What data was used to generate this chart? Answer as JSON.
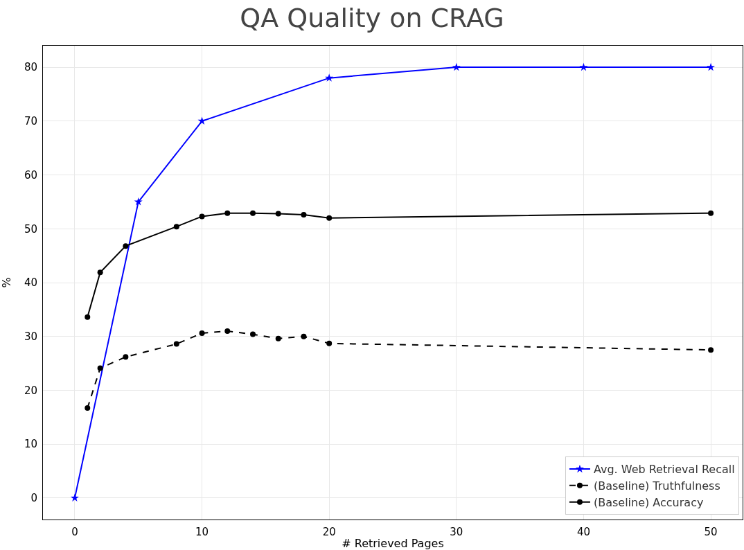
{
  "chart_data": {
    "type": "line",
    "title": "QA Quality on CRAG",
    "xlabel": "# Retrieved Pages",
    "ylabel": "%",
    "xlim": [
      -2.5,
      52.5
    ],
    "ylim": [
      -4,
      84
    ],
    "xticks": [
      0,
      10,
      20,
      30,
      40,
      50
    ],
    "yticks": [
      0,
      10,
      20,
      30,
      40,
      50,
      60,
      70,
      80
    ],
    "grid": true,
    "legend": "bottom right",
    "series": [
      {
        "name": "Avg. Web Retrieval Recall",
        "color": "#0000ff",
        "marker": "star",
        "line_style": "solid",
        "x": [
          0,
          5,
          10,
          20,
          30,
          40,
          50
        ],
        "values": [
          0,
          55,
          70,
          78,
          80,
          80,
          80
        ]
      },
      {
        "name": "(Baseline) Truthfulness",
        "color": "#000000",
        "marker": "circle",
        "line_style": "dashed",
        "x": [
          1,
          2,
          4,
          8,
          10,
          12,
          14,
          16,
          18,
          20,
          50
        ],
        "values": [
          16.7,
          24.1,
          26.2,
          28.6,
          30.6,
          31.0,
          30.4,
          29.6,
          30.0,
          28.7,
          27.5
        ]
      },
      {
        "name": "(Baseline) Accuracy",
        "color": "#000000",
        "marker": "circle",
        "line_style": "solid",
        "x": [
          1,
          2,
          4,
          8,
          10,
          12,
          14,
          16,
          18,
          20,
          50
        ],
        "values": [
          33.6,
          41.9,
          46.8,
          50.4,
          52.3,
          52.9,
          52.9,
          52.8,
          52.6,
          52.0,
          52.9
        ]
      }
    ]
  }
}
